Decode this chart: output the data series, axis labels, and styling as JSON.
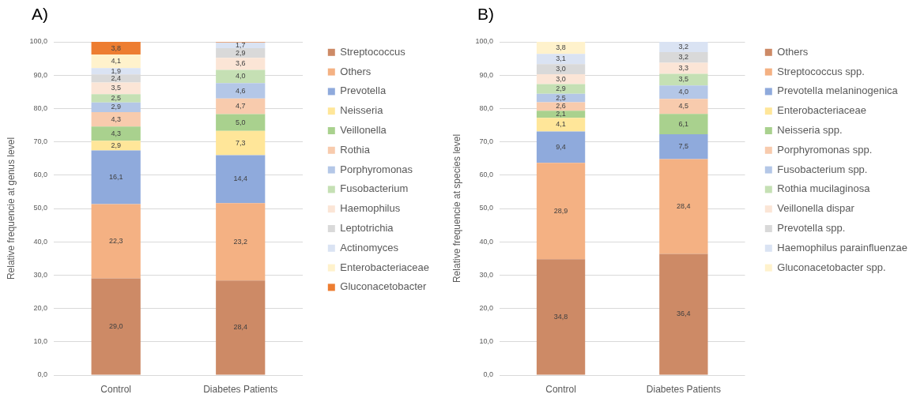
{
  "chart_data": [
    {
      "type": "bar",
      "title": "A)",
      "ylabel": "Relative frequencie at genus level",
      "categories": [
        "Control",
        "Diabetes Patients"
      ],
      "stacked": true,
      "ylim": [
        0,
        100
      ],
      "yticks": [
        {
          "value": 0,
          "label": "0,0"
        },
        {
          "value": 10,
          "label": "10,0"
        },
        {
          "value": 20,
          "label": "20,0"
        },
        {
          "value": 30,
          "label": "30,0"
        },
        {
          "value": 40,
          "label": "40,0"
        },
        {
          "value": 50,
          "label": "50,0"
        },
        {
          "value": 60,
          "label": "60,0"
        },
        {
          "value": 70,
          "label": "70,0"
        },
        {
          "value": 80,
          "label": "80,0"
        },
        {
          "value": 90,
          "label": "90,0"
        },
        {
          "value": 100,
          "label": "100,0"
        }
      ],
      "grid": "y",
      "legend": "right",
      "series": [
        {
          "name": "Streptococcus",
          "color": "#cd8a66",
          "values": [
            29.0,
            28.4
          ],
          "value_labels": [
            "29,0",
            "28,4"
          ]
        },
        {
          "name": "Others",
          "color": "#f4b183",
          "values": [
            22.3,
            23.2
          ],
          "value_labels": [
            "22,3",
            "23,2"
          ]
        },
        {
          "name": "Prevotella",
          "color": "#8faadc",
          "values": [
            16.1,
            14.4
          ],
          "value_labels": [
            "16,1",
            "14,4"
          ]
        },
        {
          "name": "Neisseria",
          "color": "#ffe699",
          "values": [
            2.9,
            7.3
          ],
          "value_labels": [
            "2,9",
            "7,3"
          ]
        },
        {
          "name": "Veillonella",
          "color": "#a9d18e",
          "values": [
            4.3,
            5.0
          ],
          "value_labels": [
            "4,3",
            "5,0"
          ]
        },
        {
          "name": "Rothia",
          "color": "#f8cbad",
          "values": [
            4.3,
            4.7
          ],
          "value_labels": [
            "4,3",
            "4,7"
          ]
        },
        {
          "name": "Porphyromonas",
          "color": "#b4c7e7",
          "values": [
            2.9,
            4.6
          ],
          "value_labels": [
            "2,9",
            "4,6"
          ]
        },
        {
          "name": "Fusobacterium",
          "color": "#c5e0b4",
          "values": [
            2.5,
            4.0
          ],
          "value_labels": [
            "2,5",
            "4,0"
          ]
        },
        {
          "name": "Haemophilus",
          "color": "#fbe5d6",
          "values": [
            3.5,
            3.6
          ],
          "value_labels": [
            "3,5",
            "3,6"
          ]
        },
        {
          "name": "Leptotrichia",
          "color": "#d9d9d9",
          "values": [
            2.4,
            2.9
          ],
          "value_labels": [
            "2,4",
            "2,9"
          ]
        },
        {
          "name": "Actinomyces",
          "color": "#dae3f3",
          "values": [
            1.9,
            1.7
          ],
          "value_labels": [
            "1,9",
            "1,7"
          ]
        },
        {
          "name": "Enterobacteriaceae",
          "color": "#fff2cc",
          "values": [
            4.1,
            null
          ],
          "value_labels": [
            "4,1",
            null
          ]
        },
        {
          "name": "Gluconacetobacter",
          "color": "#ed7d31",
          "values": [
            3.8,
            0.2
          ],
          "value_labels": [
            "3,8",
            null
          ]
        }
      ]
    },
    {
      "type": "bar",
      "title": "B)",
      "ylabel": "Relative frequencie at species level",
      "categories": [
        "Control",
        "Diabetes Patients"
      ],
      "stacked": true,
      "ylim": [
        0,
        100
      ],
      "yticks": [
        {
          "value": 0,
          "label": "0,0"
        },
        {
          "value": 10,
          "label": "10,0"
        },
        {
          "value": 20,
          "label": "20,0"
        },
        {
          "value": 30,
          "label": "30,0"
        },
        {
          "value": 40,
          "label": "40,0"
        },
        {
          "value": 50,
          "label": "50,0"
        },
        {
          "value": 60,
          "label": "60,0"
        },
        {
          "value": 70,
          "label": "70,0"
        },
        {
          "value": 80,
          "label": "80,0"
        },
        {
          "value": 90,
          "label": "90,0"
        },
        {
          "value": 100,
          "label": "100,0"
        }
      ],
      "grid": "y",
      "legend": "right",
      "series": [
        {
          "name": "Others",
          "color": "#cd8a66",
          "values": [
            34.8,
            36.4
          ],
          "value_labels": [
            "34,8",
            "36,4"
          ]
        },
        {
          "name": "Streptococcus spp.",
          "color": "#f4b183",
          "values": [
            28.9,
            28.4
          ],
          "value_labels": [
            "28,9",
            "28,4"
          ]
        },
        {
          "name": "Prevotella melaninogenica",
          "color": "#8faadc",
          "values": [
            9.4,
            7.5
          ],
          "value_labels": [
            "9,4",
            "7,5"
          ]
        },
        {
          "name": "Enterobacteriaceae",
          "color": "#ffe699",
          "values": [
            4.1,
            null
          ],
          "value_labels": [
            "4,1",
            null
          ]
        },
        {
          "name": "Neisseria spp.",
          "color": "#a9d18e",
          "values": [
            2.1,
            6.1
          ],
          "value_labels": [
            "2,1",
            "6,1"
          ]
        },
        {
          "name": "Porphyromonas spp.",
          "color": "#f8cbad",
          "values": [
            2.6,
            4.5
          ],
          "value_labels": [
            "2,6",
            "4,5"
          ]
        },
        {
          "name": "Fusobacterium spp.",
          "color": "#b4c7e7",
          "values": [
            2.5,
            4.0
          ],
          "value_labels": [
            "2,5",
            "4,0"
          ]
        },
        {
          "name": "Rothia mucilaginosa",
          "color": "#c5e0b4",
          "values": [
            2.9,
            3.5
          ],
          "value_labels": [
            "2,9",
            "3,5"
          ]
        },
        {
          "name": "Veillonella dispar",
          "color": "#fbe5d6",
          "values": [
            3.0,
            3.3
          ],
          "value_labels": [
            "3,0",
            "3,3"
          ]
        },
        {
          "name": "Prevotella spp.",
          "color": "#d9d9d9",
          "values": [
            3.0,
            3.2
          ],
          "value_labels": [
            "3,0",
            "3,2"
          ]
        },
        {
          "name": "Haemophilus parainfluenzae",
          "color": "#dae3f3",
          "values": [
            3.1,
            3.2
          ],
          "value_labels": [
            "3,1",
            "3,2"
          ]
        },
        {
          "name": "Gluconacetobacter spp.",
          "color": "#fff2cc",
          "values": [
            3.8,
            null
          ],
          "value_labels": [
            "3,8",
            null
          ]
        }
      ]
    }
  ]
}
